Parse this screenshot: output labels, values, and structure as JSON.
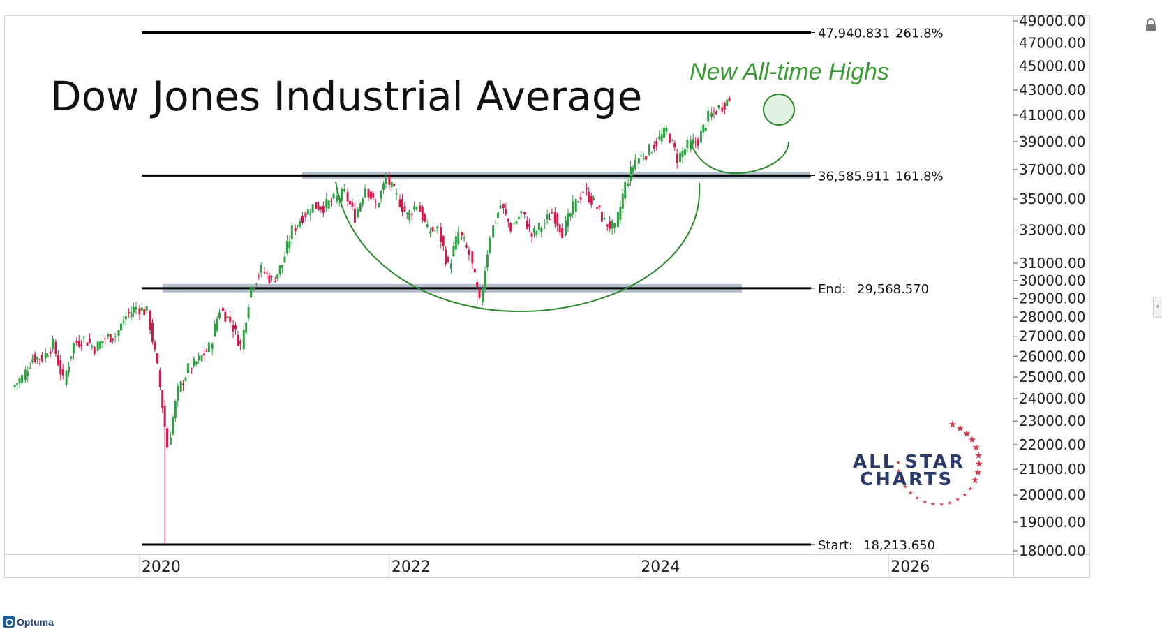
{
  "app": {
    "brand": "Optuma"
  },
  "logo": {
    "line1": "ALL STAR",
    "line2": "CHARTS",
    "color_text": "#2a3a6b",
    "color_stars": "#d23a4a"
  },
  "chart_data": {
    "type": "candlestick",
    "title": "Dow Jones Industrial Average",
    "annotation": "New All-time Highs",
    "x": [
      "2019-01",
      "2019-02",
      "2019-03",
      "2019-04",
      "2019-05",
      "2019-06",
      "2019-07",
      "2019-08",
      "2019-09",
      "2019-10",
      "2019-11",
      "2019-12",
      "2020-01",
      "2020-02",
      "2020-03",
      "2020-04",
      "2020-05",
      "2020-06",
      "2020-07",
      "2020-08",
      "2020-09",
      "2020-10",
      "2020-11",
      "2020-12",
      "2021-01",
      "2021-02",
      "2021-03",
      "2021-04",
      "2021-05",
      "2021-06",
      "2021-07",
      "2021-08",
      "2021-09",
      "2021-10",
      "2021-11",
      "2021-12",
      "2022-01",
      "2022-02",
      "2022-03",
      "2022-04",
      "2022-05",
      "2022-06",
      "2022-07",
      "2022-08",
      "2022-09",
      "2022-10",
      "2022-11",
      "2022-12",
      "2023-01",
      "2023-02",
      "2023-03",
      "2023-04",
      "2023-05",
      "2023-06",
      "2023-07",
      "2023-08",
      "2023-09",
      "2023-10",
      "2023-11",
      "2023-12",
      "2024-01",
      "2024-02",
      "2024-03",
      "2024-04",
      "2024-05",
      "2024-06",
      "2024-07",
      "2024-08",
      "2024-09"
    ],
    "close": [
      24999,
      25916,
      25929,
      26593,
      24815,
      26600,
      26864,
      26403,
      26917,
      27046,
      28051,
      28538,
      28256,
      25409,
      21917,
      24346,
      25383,
      25813,
      26428,
      28430,
      27782,
      26502,
      29638,
      30606,
      29983,
      30932,
      32982,
      33875,
      34529,
      34503,
      34935,
      35361,
      33844,
      35820,
      34484,
      36338,
      35132,
      33893,
      34678,
      32977,
      32990,
      30775,
      32845,
      31510,
      28726,
      32733,
      34590,
      33147,
      34086,
      32657,
      33274,
      34098,
      32908,
      34408,
      35560,
      34722,
      33508,
      33053,
      35951,
      37690,
      38150,
      38996,
      39807,
      37816,
      38686,
      39119,
      40843,
      41563,
      42330
    ],
    "xlabels": [
      "2020",
      "2022",
      "2024",
      "2026"
    ],
    "ylim": [
      18000,
      49000
    ],
    "y_ticks": [
      "49000.00",
      "47000.00",
      "45000.00",
      "43000.00",
      "41000.00",
      "39000.00",
      "37000.00",
      "35000.00",
      "33000.00",
      "31000.00",
      "30000.00",
      "29000.00",
      "28000.00",
      "27000.00",
      "26000.00",
      "25000.00",
      "24000.00",
      "23000.00",
      "22000.00",
      "21000.00",
      "20000.00",
      "19000.00",
      "18000.00"
    ],
    "scale": "log",
    "fib_levels": [
      {
        "value": 47940.831,
        "label": "47,940.831",
        "pct": "261.8%"
      },
      {
        "value": 36585.911,
        "label": "36,585.911",
        "pct": "161.8%"
      },
      {
        "value": 29568.57,
        "prefix": "End:",
        "label": "29,568.570"
      },
      {
        "value": 18213.65,
        "prefix": "Start:",
        "label": "18,213.650"
      }
    ],
    "colors": {
      "up": "#2ea043",
      "down": "#d6174a",
      "pattern": "#2b8a2b",
      "zone": "#a9b4c4",
      "line": "#000000"
    }
  }
}
